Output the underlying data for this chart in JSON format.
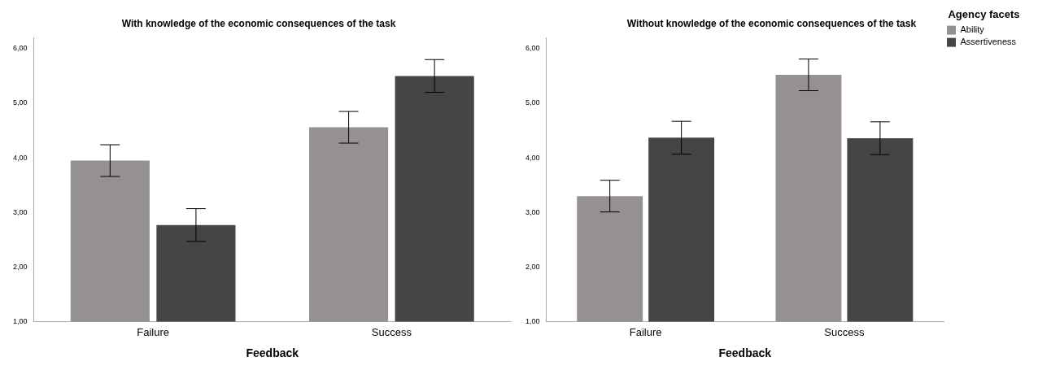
{
  "chart_data": [
    {
      "type": "bar",
      "title": "With knowledge of the economic consequences of the task",
      "xlabel": "Feedback",
      "categories": [
        "Failure",
        "Success"
      ],
      "series": [
        {
          "color": "#959190",
          "values": [
            3.95,
            4.56
          ],
          "errors": [
            0.29,
            0.29
          ]
        },
        {
          "color": "#444546",
          "values": [
            2.77,
            5.5
          ],
          "errors": [
            0.3,
            0.3
          ]
        }
      ],
      "ylim": [
        1,
        6.2
      ],
      "yticks": [
        {
          "value": 1,
          "label": "1,00"
        },
        {
          "value": 2,
          "label": "2,00"
        },
        {
          "value": 3,
          "label": "3,00"
        },
        {
          "value": 4,
          "label": "4,00"
        },
        {
          "value": 5,
          "label": "5,00"
        },
        {
          "value": 6,
          "label": "6,00"
        }
      ],
      "grid": false,
      "legend": false
    },
    {
      "type": "bar",
      "title": "Without knowledge of the economic consequences of the task",
      "xlabel": "Feedback",
      "legend_title": "Agency facets",
      "categories": [
        "Failure",
        "Success"
      ],
      "series": [
        {
          "name": "Ability",
          "color": "#959190",
          "values": [
            3.3,
            5.52
          ],
          "errors": [
            0.29,
            0.29
          ]
        },
        {
          "name": "Assertiveness",
          "color": "#444546",
          "values": [
            4.37,
            4.36
          ],
          "errors": [
            0.3,
            0.3
          ]
        }
      ],
      "ylim": [
        1,
        6.2
      ],
      "yticks": [
        {
          "value": 1,
          "label": "1,00"
        },
        {
          "value": 2,
          "label": "2,00"
        },
        {
          "value": 3,
          "label": "3,00"
        },
        {
          "value": 4,
          "label": "4,00"
        },
        {
          "value": 5,
          "label": "5,00"
        },
        {
          "value": 6,
          "label": "6,00"
        }
      ],
      "grid": false,
      "legend": "top right"
    }
  ]
}
